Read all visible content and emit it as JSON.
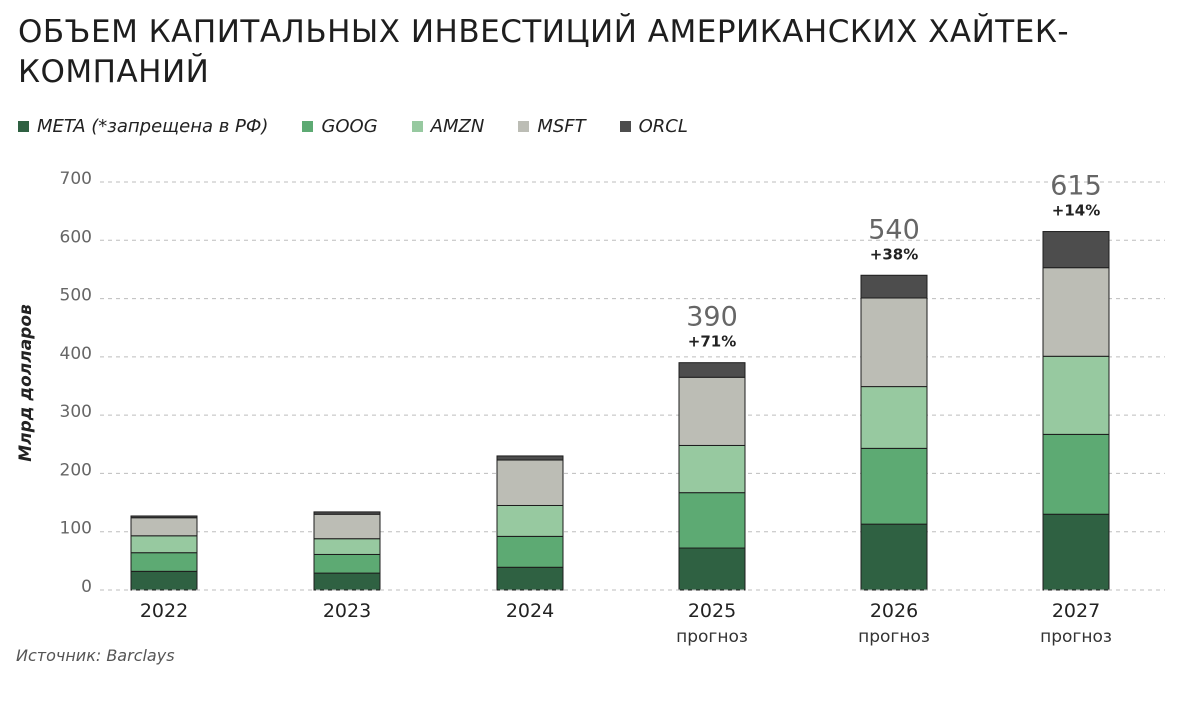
{
  "title": "Объем капитальных инвестиций американских хайтек-компаний",
  "source": "Источник: Barclays",
  "chart_data": {
    "type": "bar",
    "stacked": true,
    "title": "Объем капитальных инвестиций американских хайтек-компаний",
    "xlabel": "",
    "ylabel": "Млрд долларов",
    "ylim": [
      0,
      700
    ],
    "yticks": [
      "0",
      "100",
      "200",
      "300",
      "400",
      "500",
      "600",
      "700"
    ],
    "grid": true,
    "legend_position": "top-left",
    "categories": [
      "2022",
      "2023",
      "2024",
      "2025",
      "2026",
      "2027"
    ],
    "category_sublabels": [
      "",
      "",
      "",
      "прогноз",
      "прогноз",
      "прогноз"
    ],
    "series": [
      {
        "name": "META (*запрещена в РФ)",
        "color": "#2f6142",
        "values": [
          32,
          29,
          39,
          72,
          113,
          130
        ]
      },
      {
        "name": "GOOG",
        "color": "#5daa73",
        "values": [
          32,
          32,
          53,
          95,
          130,
          137
        ]
      },
      {
        "name": "AMZN",
        "color": "#97c9a0",
        "values": [
          29,
          27,
          53,
          81,
          106,
          134
        ]
      },
      {
        "name": "MSFT",
        "color": "#bcbdb5",
        "values": [
          31,
          42,
          78,
          117,
          152,
          152
        ]
      },
      {
        "name": "ORCL",
        "color": "#4d4d4d",
        "values": [
          3,
          4,
          7,
          25,
          39,
          62
        ]
      }
    ],
    "totals": [
      "",
      "",
      "",
      "390",
      "540",
      "615"
    ],
    "growth_labels": [
      "",
      "",
      "",
      "+71%",
      "+38%",
      "+14%"
    ]
  }
}
